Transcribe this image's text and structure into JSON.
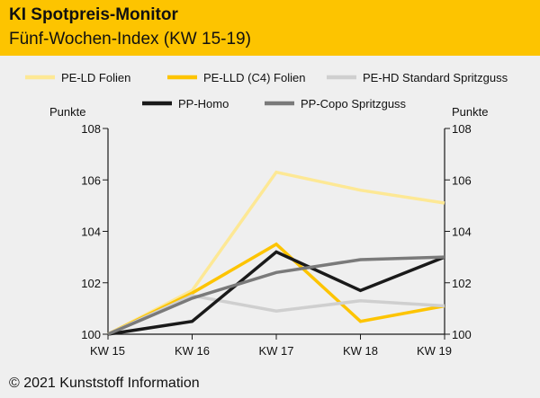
{
  "header": {
    "title": "KI Spotpreis-Monitor",
    "subtitle": "Fünf-Wochen-Index (KW 15-19)"
  },
  "footer": {
    "copyright": "© 2021 Kunststoff Information"
  },
  "colors": {
    "header_bg": "#fdc400",
    "background": "#efefef",
    "axis": "#1a1a1a"
  },
  "chart_data": {
    "type": "line",
    "title": "KI Spotpreis-Monitor",
    "subtitle": "Fünf-Wochen-Index (KW 15-19)",
    "ylabel_left": "Punkte",
    "ylabel_right": "Punkte",
    "xlabel": "",
    "categories": [
      "KW 15",
      "KW 16",
      "KW 17",
      "KW 18",
      "KW 19"
    ],
    "ylim": [
      100,
      108
    ],
    "yticks": [
      "100",
      "102",
      "104",
      "106",
      "108"
    ],
    "grid": false,
    "legend_position": "top",
    "series": [
      {
        "name": "PE-LD Folien",
        "color": "#fde895",
        "values": [
          100,
          101.7,
          106.3,
          105.6,
          105.1
        ]
      },
      {
        "name": "PE-LLD (C4) Folien",
        "color": "#fdc400",
        "values": [
          100,
          101.6,
          103.5,
          100.5,
          101.1
        ]
      },
      {
        "name": "PE-HD Standard Spritzguss",
        "color": "#cfcfcf",
        "values": [
          100,
          101.5,
          100.9,
          101.3,
          101.1
        ]
      },
      {
        "name": "PP-Homo",
        "color": "#1a1a1a",
        "values": [
          100,
          100.5,
          103.2,
          101.7,
          103.0
        ]
      },
      {
        "name": "PP-Copo Spritzguss",
        "color": "#7a7a7a",
        "values": [
          100,
          101.4,
          102.4,
          102.9,
          103.0
        ]
      }
    ]
  }
}
